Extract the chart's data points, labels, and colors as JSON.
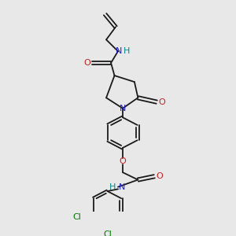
{
  "bg_color": "#e8e8e8",
  "black": "#1a1a1a",
  "blue": "#2020cc",
  "red": "#cc2020",
  "green": "#007700",
  "figsize": [
    3.0,
    3.0
  ],
  "dpi": 100,
  "xlim": [
    0,
    10
  ],
  "ylim": [
    0,
    10
  ]
}
